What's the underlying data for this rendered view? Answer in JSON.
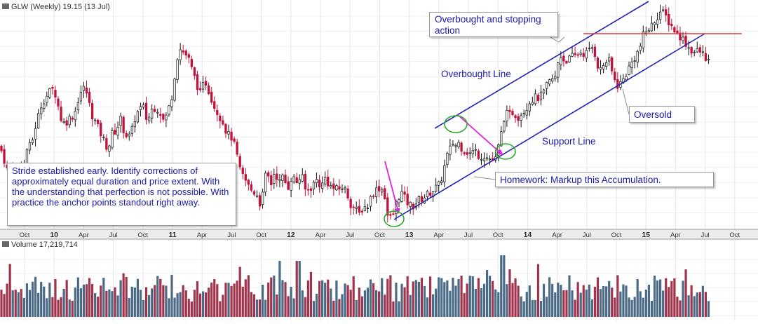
{
  "chart_data": [
    {
      "type": "candlestick",
      "title": "GLW (Weekly) 19.15 (13 Jul)",
      "x_labels": [
        "Oct",
        "10",
        "Apr",
        "Jul",
        "Oct",
        "11",
        "Apr",
        "Jul",
        "Oct",
        "12",
        "Apr",
        "Jul",
        "Oct",
        "13",
        "Apr",
        "Jul",
        "Oct",
        "14",
        "Apr",
        "Jul",
        "Oct",
        "15",
        "Apr",
        "Jul",
        "Oct"
      ],
      "x_label_bold": [
        "10",
        "11",
        "12",
        "13",
        "14",
        "15"
      ],
      "price_path": [
        [
          0,
          15.4
        ],
        [
          6,
          14.5
        ],
        [
          12,
          13.6
        ],
        [
          18,
          14.1
        ],
        [
          23,
          13.2
        ],
        [
          28,
          14.6
        ],
        [
          32,
          13.3
        ],
        [
          38,
          15.2
        ],
        [
          45,
          15.5
        ],
        [
          52,
          17.0
        ],
        [
          60,
          18.3
        ],
        [
          68,
          18.8
        ],
        [
          74,
          19.2
        ],
        [
          80,
          18.8
        ],
        [
          86,
          17.3
        ],
        [
          92,
          16.9
        ],
        [
          100,
          17.3
        ],
        [
          106,
          17.5
        ],
        [
          112,
          18.6
        ],
        [
          118,
          19.3
        ],
        [
          124,
          18.9
        ],
        [
          130,
          17.6
        ],
        [
          138,
          16.8
        ],
        [
          146,
          16.0
        ],
        [
          154,
          15.2
        ],
        [
          160,
          16.2
        ],
        [
          166,
          16.5
        ],
        [
          172,
          17.2
        ],
        [
          178,
          16.2
        ],
        [
          186,
          16.0
        ],
        [
          192,
          17.2
        ],
        [
          198,
          17.8
        ],
        [
          204,
          18.0
        ],
        [
          210,
          17.0
        ],
        [
          216,
          17.8
        ],
        [
          222,
          18.0
        ],
        [
          228,
          17.7
        ],
        [
          234,
          17.0
        ],
        [
          240,
          17.8
        ],
        [
          246,
          18.9
        ],
        [
          252,
          21.2
        ],
        [
          257,
          21.8
        ],
        [
          262,
          21.6
        ],
        [
          268,
          21.3
        ],
        [
          274,
          20.4
        ],
        [
          280,
          19.6
        ],
        [
          286,
          18.8
        ],
        [
          292,
          19.8
        ],
        [
          300,
          18.8
        ],
        [
          306,
          18.0
        ],
        [
          312,
          17.5
        ],
        [
          318,
          17.0
        ],
        [
          324,
          16.2
        ],
        [
          330,
          16.0
        ],
        [
          336,
          15.2
        ],
        [
          342,
          13.8
        ],
        [
          348,
          13.3
        ],
        [
          354,
          12.8
        ],
        [
          360,
          12.4
        ],
        [
          366,
          12.3
        ],
        [
          370,
          11.6
        ],
        [
          374,
          12.0
        ],
        [
          380,
          13.8
        ],
        [
          386,
          12.8
        ],
        [
          392,
          13.8
        ],
        [
          398,
          13.0
        ],
        [
          404,
          13.4
        ],
        [
          410,
          12.6
        ],
        [
          416,
          13.4
        ],
        [
          424,
          13.0
        ],
        [
          430,
          13.5
        ],
        [
          436,
          12.4
        ],
        [
          444,
          12.7
        ],
        [
          452,
          13.2
        ],
        [
          458,
          12.7
        ],
        [
          464,
          13.3
        ],
        [
          470,
          12.8
        ],
        [
          476,
          12.6
        ],
        [
          482,
          12.5
        ],
        [
          488,
          12.7
        ],
        [
          494,
          12.4
        ],
        [
          500,
          11.6
        ],
        [
          506,
          11.3
        ],
        [
          512,
          10.9
        ],
        [
          518,
          11.4
        ],
        [
          524,
          11.4
        ],
        [
          530,
          12.2
        ],
        [
          536,
          12.5
        ],
        [
          542,
          12.7
        ],
        [
          548,
          12.4
        ],
        [
          552,
          10.9
        ],
        [
          556,
          10.6
        ],
        [
          562,
          11.0
        ],
        [
          566,
          11.8
        ],
        [
          572,
          12.4
        ],
        [
          580,
          11.7
        ],
        [
          588,
          11.4
        ],
        [
          596,
          11.8
        ],
        [
          604,
          12.0
        ],
        [
          612,
          12.3
        ],
        [
          620,
          12.6
        ],
        [
          626,
          12.8
        ],
        [
          632,
          13.6
        ],
        [
          636,
          14.6
        ],
        [
          640,
          15.0
        ],
        [
          646,
          15.6
        ],
        [
          652,
          15.4
        ],
        [
          656,
          15.8
        ],
        [
          660,
          14.9
        ],
        [
          664,
          15.3
        ],
        [
          668,
          14.8
        ],
        [
          672,
          15.0
        ],
        [
          678,
          15.1
        ],
        [
          684,
          14.7
        ],
        [
          690,
          14.8
        ],
        [
          696,
          14.6
        ],
        [
          702,
          14.5
        ],
        [
          706,
          14.4
        ],
        [
          712,
          15.6
        ],
        [
          716,
          16.5
        ],
        [
          720,
          17.6
        ],
        [
          726,
          17.4
        ],
        [
          732,
          17.7
        ],
        [
          738,
          17.3
        ],
        [
          744,
          17.6
        ],
        [
          750,
          17.9
        ],
        [
          756,
          18.4
        ],
        [
          762,
          18.6
        ],
        [
          768,
          18.6
        ],
        [
          774,
          18.8
        ],
        [
          780,
          19.4
        ],
        [
          786,
          19.8
        ],
        [
          792,
          19.9
        ],
        [
          798,
          21.5
        ],
        [
          804,
          21.1
        ],
        [
          810,
          21.1
        ],
        [
          816,
          21.3
        ],
        [
          822,
          21.4
        ],
        [
          828,
          21.6
        ],
        [
          834,
          21.5
        ],
        [
          840,
          21.7
        ],
        [
          846,
          22.0
        ],
        [
          852,
          20.8
        ],
        [
          856,
          20.4
        ],
        [
          862,
          20.9
        ],
        [
          868,
          21.1
        ],
        [
          874,
          20.1
        ],
        [
          880,
          19.4
        ],
        [
          886,
          19.6
        ],
        [
          890,
          19.9
        ],
        [
          896,
          20.5
        ],
        [
          902,
          21.0
        ],
        [
          908,
          21.5
        ],
        [
          912,
          21.8
        ],
        [
          918,
          22.8
        ],
        [
          924,
          23.1
        ],
        [
          930,
          23.4
        ],
        [
          936,
          23.9
        ],
        [
          942,
          24.3
        ],
        [
          948,
          24.1
        ],
        [
          954,
          23.6
        ],
        [
          960,
          23.2
        ],
        [
          966,
          22.8
        ],
        [
          972,
          22.6
        ],
        [
          978,
          22.2
        ],
        [
          984,
          21.8
        ],
        [
          990,
          21.6
        ],
        [
          996,
          21.7
        ],
        [
          1002,
          21.5
        ],
        [
          1008,
          21.2
        ],
        [
          1014,
          20.8
        ]
      ],
      "annotations": {
        "stride_note": "Stride established early. Identify corrections of approximately equal duration and price extent. With the understanding that perfection is not possible. With practice the anchor points standout right away.",
        "overbought_stopping": "Overbought and stopping action",
        "overbought_line": "Overbought Line",
        "support_line": "Support Line",
        "oversold": "Oversold",
        "homework": "Homework: Markup this Accumulation."
      },
      "colors": {
        "up": "#111111",
        "down": "#c0123a",
        "channel": "#2222b4",
        "resistance": "#e03a3a",
        "arrow": "#dd22dd",
        "circle": "#2aaa2a",
        "text": "#1a1aa8"
      },
      "grid": true
    },
    {
      "type": "bar",
      "title": "Volume 17,219,714",
      "colors": {
        "up": "#4a6a86",
        "down": "#a0344c"
      },
      "grid": true
    }
  ]
}
